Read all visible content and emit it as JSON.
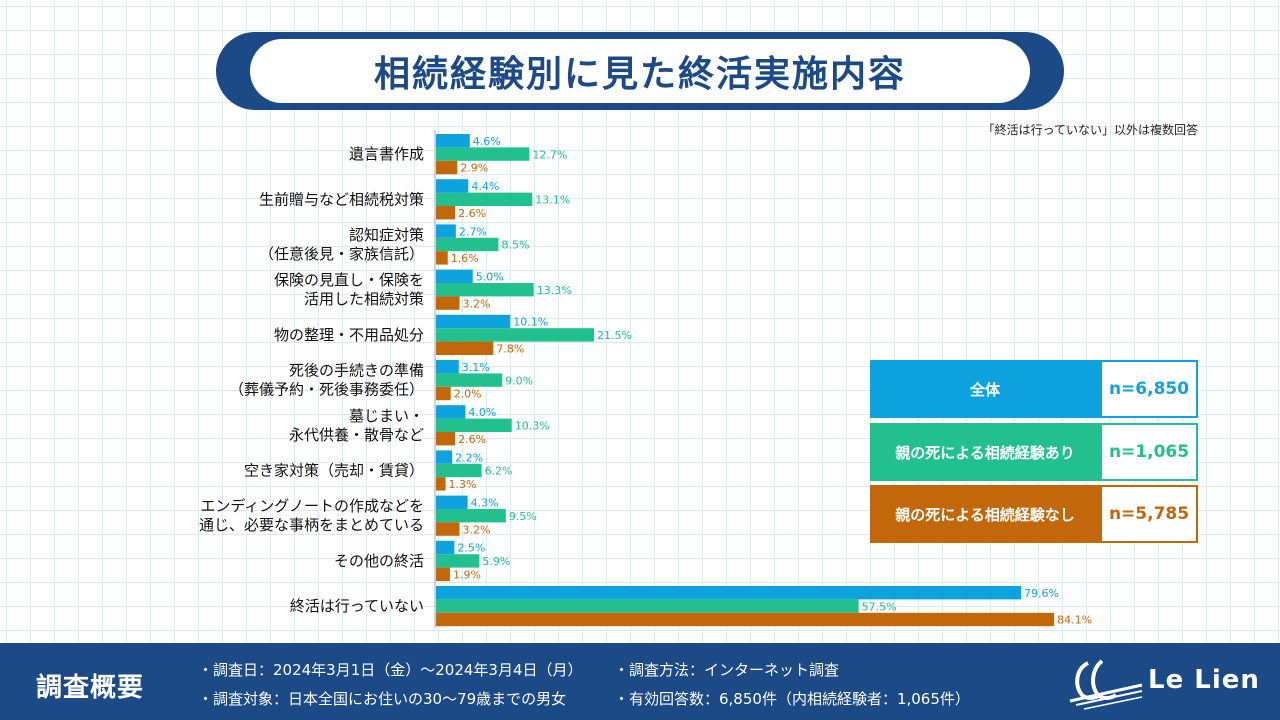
{
  "title": "相続経験別に見た終活実施内容",
  "note": "「終活は行っていない」以外は複数回答",
  "colors": {
    "all": "#0ea3de",
    "with": "#22c08e",
    "without": "#c2680a",
    "navy": "#1c4a86"
  },
  "legend": [
    {
      "label": "全体",
      "n": "n=6,850",
      "color": "#0ea3de"
    },
    {
      "label": "親の死による相続経験あり",
      "n": "n=1,065",
      "color": "#22c08e"
    },
    {
      "label": "親の死による相続経験なし",
      "n": "n=5,785",
      "color": "#c2680a"
    }
  ],
  "chart_data": {
    "type": "bar",
    "orientation": "horizontal",
    "title": "相続経験別に見た終活実施内容",
    "unit": "%",
    "xlim": [
      0,
      100
    ],
    "categories": [
      [
        "遺言書作成"
      ],
      [
        "生前贈与など相続税対策"
      ],
      [
        "認知症対策",
        "（任意後見・家族信託）"
      ],
      [
        "保険の見直し・保険を",
        "活用した相続対策"
      ],
      [
        "物の整理・不用品処分"
      ],
      [
        "死後の手続きの準備",
        "（葬儀予約・死後事務委任）"
      ],
      [
        "墓じまい・",
        "永代供養・散骨など"
      ],
      [
        "空き家対策（売却・賃貸）"
      ],
      [
        "エンディングノートの作成などを",
        "通じ、必要な事柄をまとめている"
      ],
      [
        "その他の終活"
      ],
      [
        "終活は行っていない"
      ]
    ],
    "series": [
      {
        "name": "全体",
        "values": [
          4.6,
          4.4,
          2.7,
          5.0,
          10.1,
          3.1,
          4.0,
          2.2,
          4.3,
          2.5,
          79.6
        ]
      },
      {
        "name": "親の死による相続経験あり",
        "values": [
          12.7,
          13.1,
          8.5,
          13.3,
          21.5,
          9.0,
          10.3,
          6.2,
          9.5,
          5.9,
          57.5
        ]
      },
      {
        "name": "親の死による相続経験なし",
        "values": [
          2.9,
          2.6,
          1.6,
          3.2,
          7.8,
          2.0,
          2.6,
          1.3,
          3.2,
          1.9,
          84.1
        ]
      }
    ]
  },
  "footer": {
    "title": "調査概要",
    "date": "・調査日：2024年3月1日（金）～2024年3月4日（月）",
    "target": "・調査対象：日本全国にお住いの30～79歳までの男女",
    "method": "・調査方法：インターネット調査",
    "responses": "・有効回答数：6,850件（内相続経験者：1,065件）",
    "logo": "Le Lien"
  }
}
